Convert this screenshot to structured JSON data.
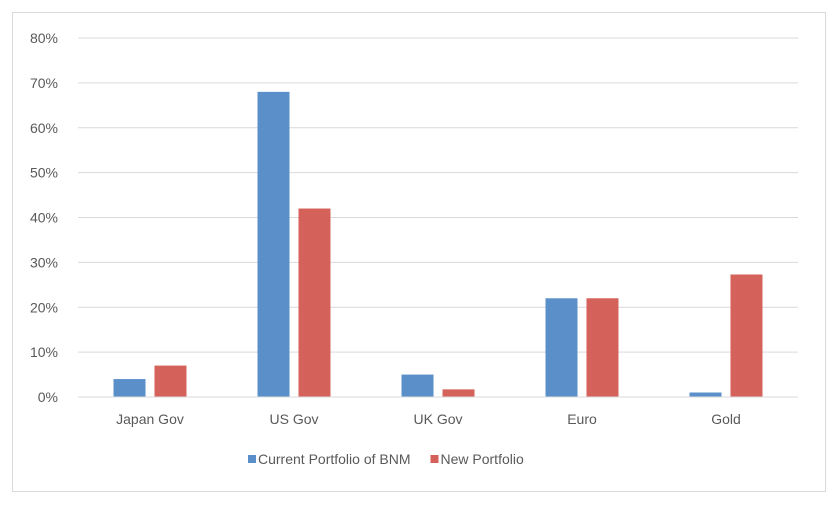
{
  "chart_data": {
    "type": "bar",
    "title": "",
    "xlabel": "",
    "ylabel": "",
    "categories": [
      "Japan Gov",
      "US Gov",
      "UK Gov",
      "Euro",
      "Gold"
    ],
    "series": [
      {
        "name": "Current Portfolio of BNM",
        "color": "#5B8FC9",
        "values": [
          4,
          68,
          5,
          22,
          1
        ]
      },
      {
        "name": "New Portfolio",
        "color": "#D4625A",
        "values": [
          7,
          42,
          1.7,
          22,
          27.3
        ]
      }
    ],
    "ylim": [
      0,
      80
    ],
    "yticks": [
      "0%",
      "10%",
      "20%",
      "30%",
      "40%",
      "50%",
      "60%",
      "70%",
      "80%"
    ],
    "grid": true,
    "legend_position": "bottom"
  }
}
